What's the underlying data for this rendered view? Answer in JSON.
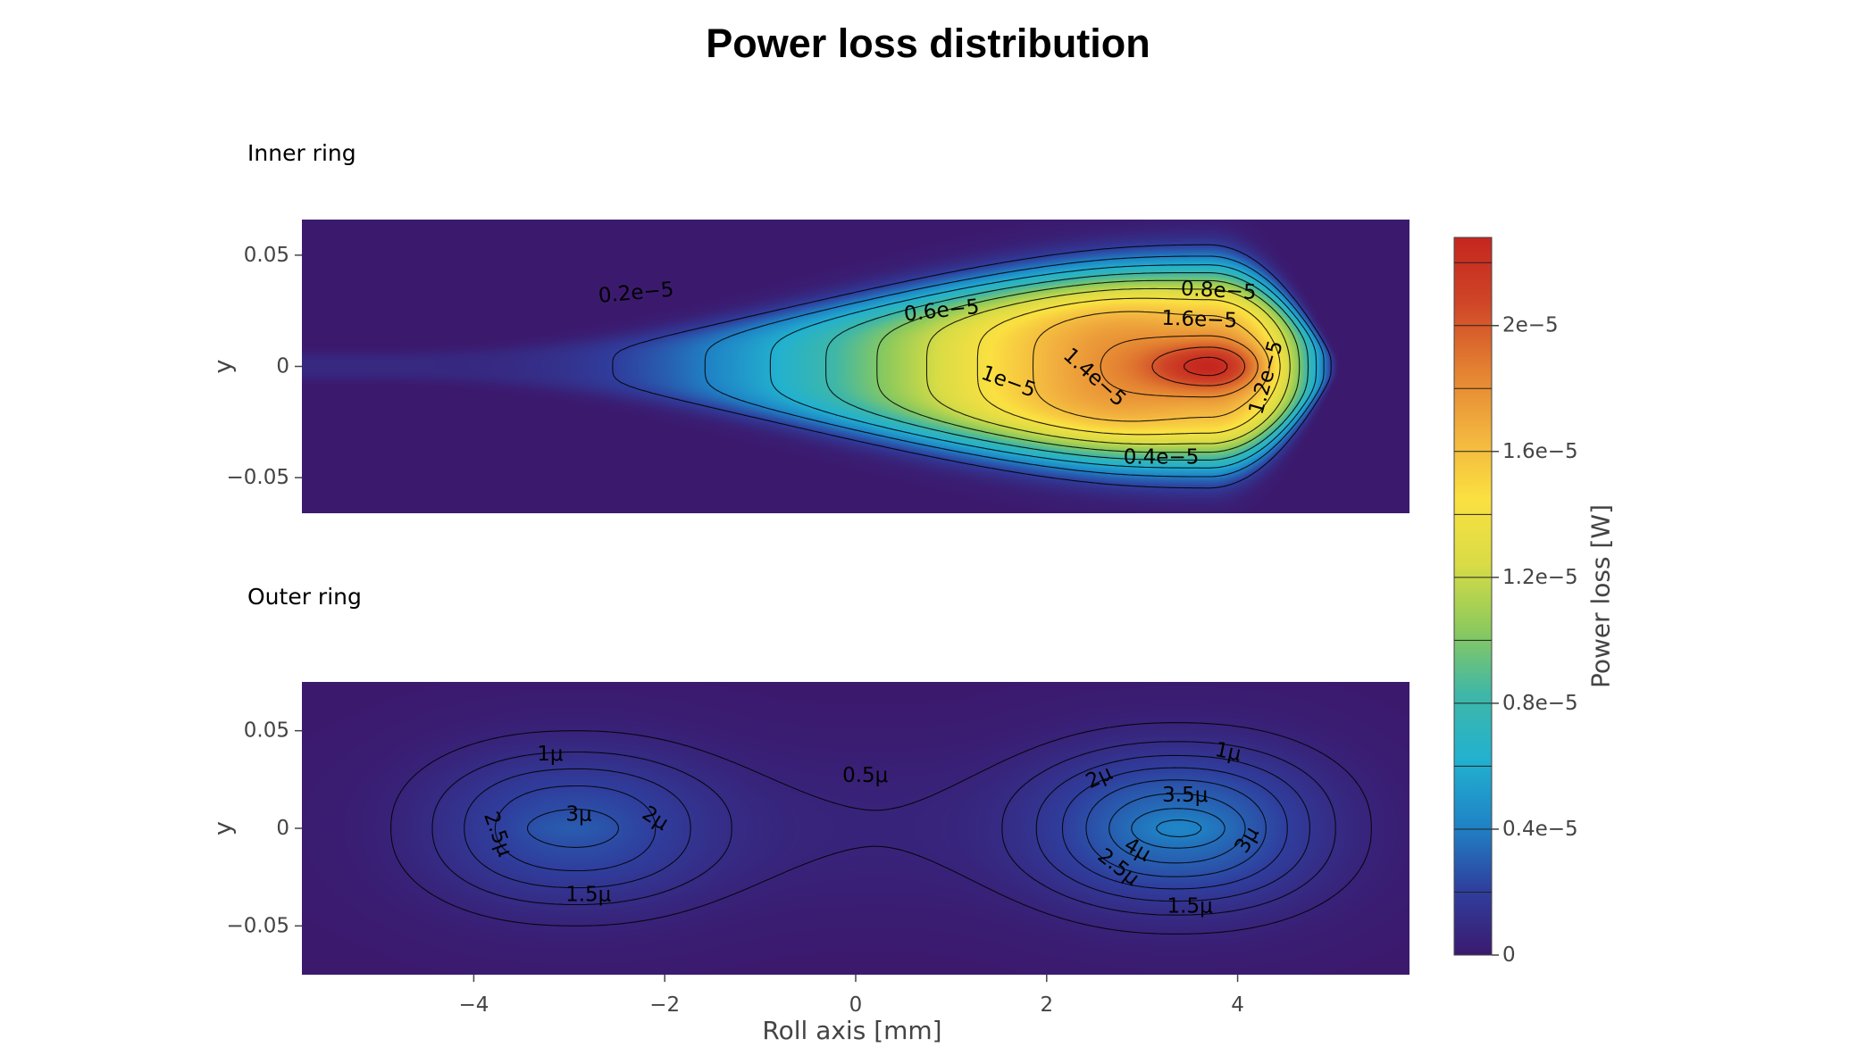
{
  "chart_data": {
    "type": "heatmap",
    "title": "Power loss distribution",
    "colorscale": [
      "#3b1a6e",
      "#2f3f9e",
      "#1f84c6",
      "#22b1cf",
      "#3fb7a7",
      "#8dca5c",
      "#d9dc45",
      "#fbe041",
      "#f2b23f",
      "#e37f31",
      "#cf4527",
      "#c5261f"
    ],
    "colorbar": {
      "title": "Power loss [W]",
      "range": [
        0,
        2.28e-05
      ],
      "tick_values": [
        0,
        4e-06,
        8e-06,
        1.2e-05,
        1.6e-05,
        2e-05
      ],
      "tick_labels": [
        "0",
        "0.4e−5",
        "0.8e−5",
        "1.2e−5",
        "1.6e−5",
        "2e−5"
      ]
    },
    "xaxis": {
      "title": "Roll axis [mm]",
      "range": [
        -5.8,
        5.8
      ],
      "tick_values": [
        -4,
        -2,
        0,
        2,
        4
      ],
      "tick_labels": [
        "−4",
        "−2",
        "0",
        "2",
        "4"
      ]
    },
    "panels": [
      {
        "subtitle": "Inner ring",
        "ylabel": "y",
        "yrange": [
          -0.066,
          0.066
        ],
        "y_tick_values": [
          0.05,
          0,
          -0.05
        ],
        "y_tick_labels": [
          "0.05",
          "0",
          "−0.05"
        ],
        "peak": 2.28e-05,
        "levels": [
          2e-06,
          4e-06,
          6e-06,
          8e-06,
          1e-05,
          1.2e-05,
          1.4e-05,
          1.6e-05,
          1.8e-05,
          2e-05,
          2.2e-05
        ],
        "contour_labels": [
          {
            "text": "0.2e−5",
            "x": -2.3,
            "y": 0.033,
            "angle": -5
          },
          {
            "text": "0.6e−5",
            "x": 0.9,
            "y": 0.025,
            "angle": -6
          },
          {
            "text": "0.8e−5",
            "x": 3.8,
            "y": 0.034,
            "angle": 3
          },
          {
            "text": "1.6e−5",
            "x": 3.6,
            "y": 0.021,
            "angle": 2
          },
          {
            "text": "1e−5",
            "x": 1.6,
            "y": -0.007,
            "angle": 20
          },
          {
            "text": "1.4e−5",
            "x": 2.5,
            "y": -0.005,
            "angle": 42
          },
          {
            "text": "1.2e−5",
            "x": 4.3,
            "y": -0.005,
            "angle": -74
          },
          {
            "text": "0.4e−5",
            "x": 3.2,
            "y": -0.041,
            "angle": 0
          }
        ]
      },
      {
        "subtitle": "Outer ring",
        "ylabel": "y",
        "yrange": [
          -0.075,
          0.075
        ],
        "y_tick_values": [
          0.05,
          0,
          -0.05
        ],
        "y_tick_labels": [
          "0.05",
          "0",
          "−0.05"
        ],
        "peak": 4.3e-06,
        "levels": [
          5e-07,
          1e-06,
          1.5e-06,
          2e-06,
          2.5e-06,
          3e-06,
          3.5e-06,
          4e-06
        ],
        "contour_labels": [
          {
            "text": "1μ",
            "x": -3.2,
            "y": 0.038,
            "angle": 0
          },
          {
            "text": "0.5μ",
            "x": 0.1,
            "y": 0.027,
            "angle": 0
          },
          {
            "text": "1μ",
            "x": 3.9,
            "y": 0.039,
            "angle": 12
          },
          {
            "text": "3μ",
            "x": -2.9,
            "y": 0.007,
            "angle": 0
          },
          {
            "text": "2μ",
            "x": -2.1,
            "y": 0.005,
            "angle": 32
          },
          {
            "text": "2.5μ",
            "x": -3.75,
            "y": -0.003,
            "angle": 70
          },
          {
            "text": "1.5μ",
            "x": -2.8,
            "y": -0.034,
            "angle": 0
          },
          {
            "text": "2μ",
            "x": 2.55,
            "y": 0.026,
            "angle": -25
          },
          {
            "text": "3.5μ",
            "x": 3.45,
            "y": 0.017,
            "angle": 0
          },
          {
            "text": "4μ",
            "x": 2.95,
            "y": -0.011,
            "angle": 30
          },
          {
            "text": "2.5μ",
            "x": 2.75,
            "y": -0.02,
            "angle": 38
          },
          {
            "text": "3μ",
            "x": 4.1,
            "y": -0.006,
            "angle": -60
          },
          {
            "text": "1.5μ",
            "x": 3.5,
            "y": -0.04,
            "angle": 0
          }
        ]
      }
    ]
  }
}
